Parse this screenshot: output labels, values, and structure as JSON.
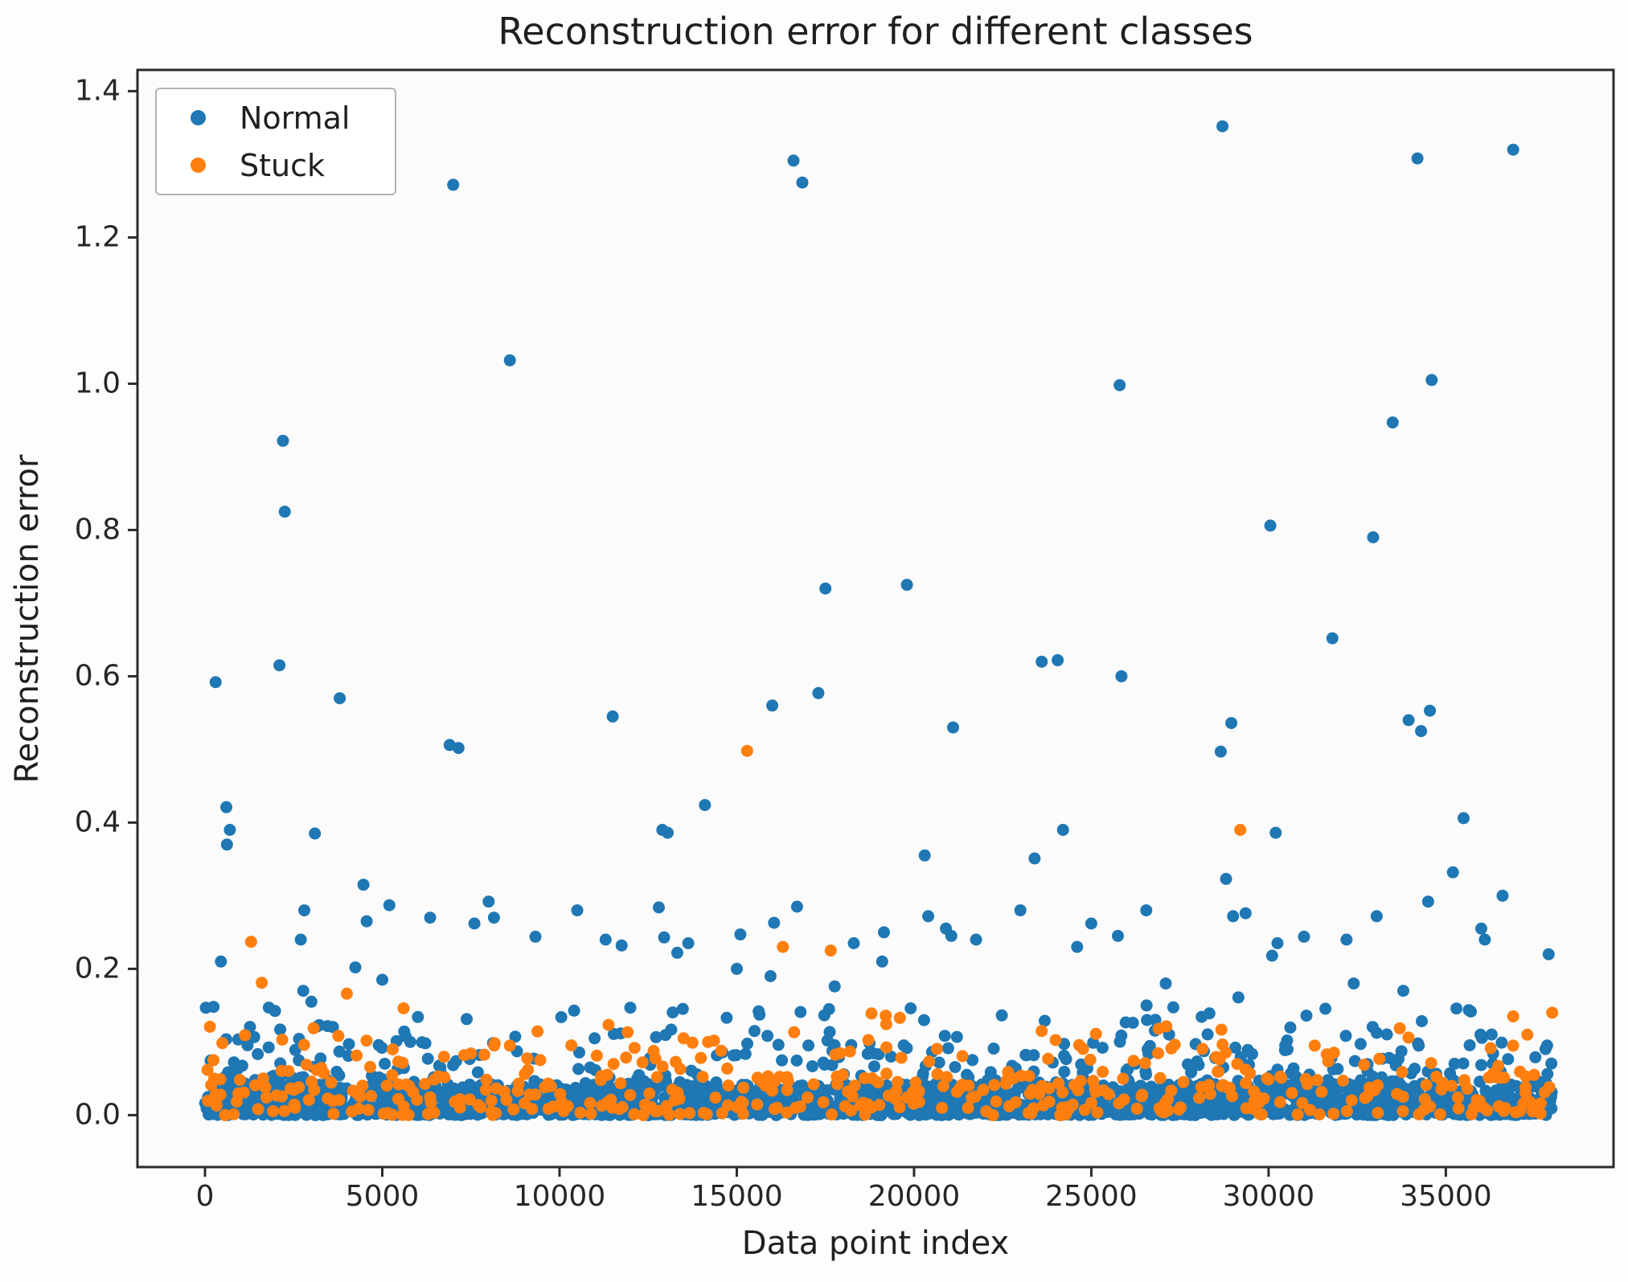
{
  "figure": {
    "title": "Reconstruction error for different classes",
    "xlabel": "Data point index",
    "ylabel": "Reconstruction error"
  },
  "colors": {
    "normal": "#1f77b4",
    "stuck": "#ff7f0e",
    "spine": "#2b2b2b",
    "plot_background": "#fbfbfc",
    "text": "#1f1f1f"
  },
  "chart_data": {
    "type": "scatter",
    "title": "Reconstruction error for different classes",
    "xlabel": "Data point index",
    "ylabel": "Reconstruction error",
    "xlim": [
      -1905,
      39730
    ],
    "ylim": [
      -0.071,
      1.429
    ],
    "grid": false,
    "legend_position": "upper left",
    "x_ticks": {
      "values": [
        0,
        5000,
        10000,
        15000,
        20000,
        25000,
        30000,
        35000
      ],
      "labels": [
        "0",
        "5000",
        "10000",
        "15000",
        "20000",
        "25000",
        "30000",
        "35000"
      ]
    },
    "y_ticks": {
      "values": [
        0.0,
        0.2,
        0.4,
        0.6,
        0.8,
        1.0,
        1.2,
        1.4
      ],
      "labels": [
        "0.0",
        "0.2",
        "0.4",
        "0.6",
        "0.8",
        "1.0",
        "1.2",
        "1.4"
      ]
    },
    "band_seed": 1337,
    "x_band_range": [
      0,
      38000
    ],
    "series": [
      {
        "name": "Normal",
        "color": "#1f77b4",
        "points": [
          [
            300,
            0.592
          ],
          [
            450,
            0.21
          ],
          [
            600,
            0.421
          ],
          [
            620,
            0.37
          ],
          [
            700,
            0.39
          ],
          [
            240,
            0.148
          ],
          [
            1800,
            0.147
          ],
          [
            2100,
            0.615
          ],
          [
            2200,
            0.922
          ],
          [
            2250,
            0.825
          ],
          [
            2700,
            0.24
          ],
          [
            2770,
            0.17
          ],
          [
            2800,
            0.28
          ],
          [
            3000,
            0.155
          ],
          [
            3100,
            0.385
          ],
          [
            3800,
            0.57
          ],
          [
            4240,
            0.202
          ],
          [
            4470,
            0.315
          ],
          [
            4560,
            0.265
          ],
          [
            5000,
            0.185
          ],
          [
            5200,
            0.287
          ],
          [
            6350,
            0.27
          ],
          [
            6900,
            0.506
          ],
          [
            7000,
            1.272
          ],
          [
            7150,
            0.502
          ],
          [
            7600,
            0.262
          ],
          [
            8000,
            0.292
          ],
          [
            8150,
            0.27
          ],
          [
            8600,
            1.032
          ],
          [
            9320,
            0.244
          ],
          [
            10500,
            0.28
          ],
          [
            11300,
            0.24
          ],
          [
            11500,
            0.545
          ],
          [
            11750,
            0.232
          ],
          [
            12800,
            0.284
          ],
          [
            12900,
            0.39
          ],
          [
            12950,
            0.243
          ],
          [
            13050,
            0.386
          ],
          [
            13320,
            0.222
          ],
          [
            13630,
            0.235
          ],
          [
            14100,
            0.424
          ],
          [
            15000,
            0.2
          ],
          [
            15100,
            0.247
          ],
          [
            15950,
            0.19
          ],
          [
            16000,
            0.56
          ],
          [
            16050,
            0.263
          ],
          [
            16600,
            1.305
          ],
          [
            16700,
            0.285
          ],
          [
            16800,
            0.141
          ],
          [
            16850,
            1.275
          ],
          [
            17300,
            0.577
          ],
          [
            17500,
            0.72
          ],
          [
            17760,
            0.176
          ],
          [
            18300,
            0.235
          ],
          [
            19100,
            0.21
          ],
          [
            19150,
            0.25
          ],
          [
            19800,
            0.725
          ],
          [
            20300,
            0.355
          ],
          [
            20400,
            0.272
          ],
          [
            20900,
            0.255
          ],
          [
            21050,
            0.245
          ],
          [
            21100,
            0.53
          ],
          [
            21750,
            0.24
          ],
          [
            23000,
            0.28
          ],
          [
            23400,
            0.351
          ],
          [
            23600,
            0.62
          ],
          [
            24050,
            0.622
          ],
          [
            24200,
            0.39
          ],
          [
            24600,
            0.23
          ],
          [
            25000,
            0.262
          ],
          [
            25750,
            0.245
          ],
          [
            25800,
            0.998
          ],
          [
            25850,
            0.6
          ],
          [
            26550,
            0.28
          ],
          [
            26560,
            0.15
          ],
          [
            26570,
            0.13
          ],
          [
            27100,
            0.18
          ],
          [
            28650,
            0.497
          ],
          [
            28700,
            1.352
          ],
          [
            28800,
            0.323
          ],
          [
            28950,
            0.536
          ],
          [
            29000,
            0.272
          ],
          [
            29150,
            0.161
          ],
          [
            29350,
            0.276
          ],
          [
            30050,
            0.806
          ],
          [
            30100,
            0.218
          ],
          [
            30200,
            0.386
          ],
          [
            30250,
            0.235
          ],
          [
            31000,
            0.244
          ],
          [
            31800,
            0.652
          ],
          [
            32200,
            0.24
          ],
          [
            32400,
            0.18
          ],
          [
            32950,
            0.79
          ],
          [
            33050,
            0.272
          ],
          [
            33500,
            0.947
          ],
          [
            33800,
            0.17
          ],
          [
            33950,
            0.54
          ],
          [
            34200,
            1.308
          ],
          [
            34300,
            0.525
          ],
          [
            34500,
            0.292
          ],
          [
            34550,
            0.553
          ],
          [
            34600,
            1.005
          ],
          [
            35200,
            0.332
          ],
          [
            35500,
            0.406
          ],
          [
            36000,
            0.255
          ],
          [
            36100,
            0.24
          ],
          [
            36600,
            0.3
          ],
          [
            36900,
            1.32
          ],
          [
            37900,
            0.22
          ]
        ],
        "band_segments": [
          {
            "count": 2300,
            "y_min": 0.0,
            "y_max": 0.042,
            "pow": 1.3
          },
          {
            "count": 230,
            "y_min": 0.042,
            "y_max": 0.095,
            "pow": 1.4
          },
          {
            "count": 95,
            "y_min": 0.095,
            "y_max": 0.148,
            "pow": 1.6
          }
        ]
      },
      {
        "name": "Stuck",
        "color": "#ff7f0e",
        "points": [
          [
            1300,
            0.237
          ],
          [
            1600,
            0.181
          ],
          [
            4000,
            0.166
          ],
          [
            5600,
            0.146
          ],
          [
            8600,
            0.095
          ],
          [
            13500,
            0.105
          ],
          [
            15290,
            0.498
          ],
          [
            16300,
            0.23
          ],
          [
            17650,
            0.225
          ],
          [
            18800,
            0.139
          ],
          [
            19200,
            0.136
          ],
          [
            19600,
            0.133
          ],
          [
            23600,
            0.115
          ],
          [
            26900,
            0.118
          ],
          [
            29200,
            0.39
          ],
          [
            31300,
            0.095
          ],
          [
            36900,
            0.135
          ],
          [
            37300,
            0.11
          ],
          [
            38000,
            0.14
          ]
        ],
        "band_segments": [
          {
            "count": 320,
            "y_min": 0.0,
            "y_max": 0.05,
            "pow": 1.2
          },
          {
            "count": 105,
            "y_min": 0.05,
            "y_max": 0.095,
            "pow": 1.4
          },
          {
            "count": 30,
            "y_min": 0.095,
            "y_max": 0.135,
            "pow": 1.5
          }
        ]
      }
    ]
  }
}
